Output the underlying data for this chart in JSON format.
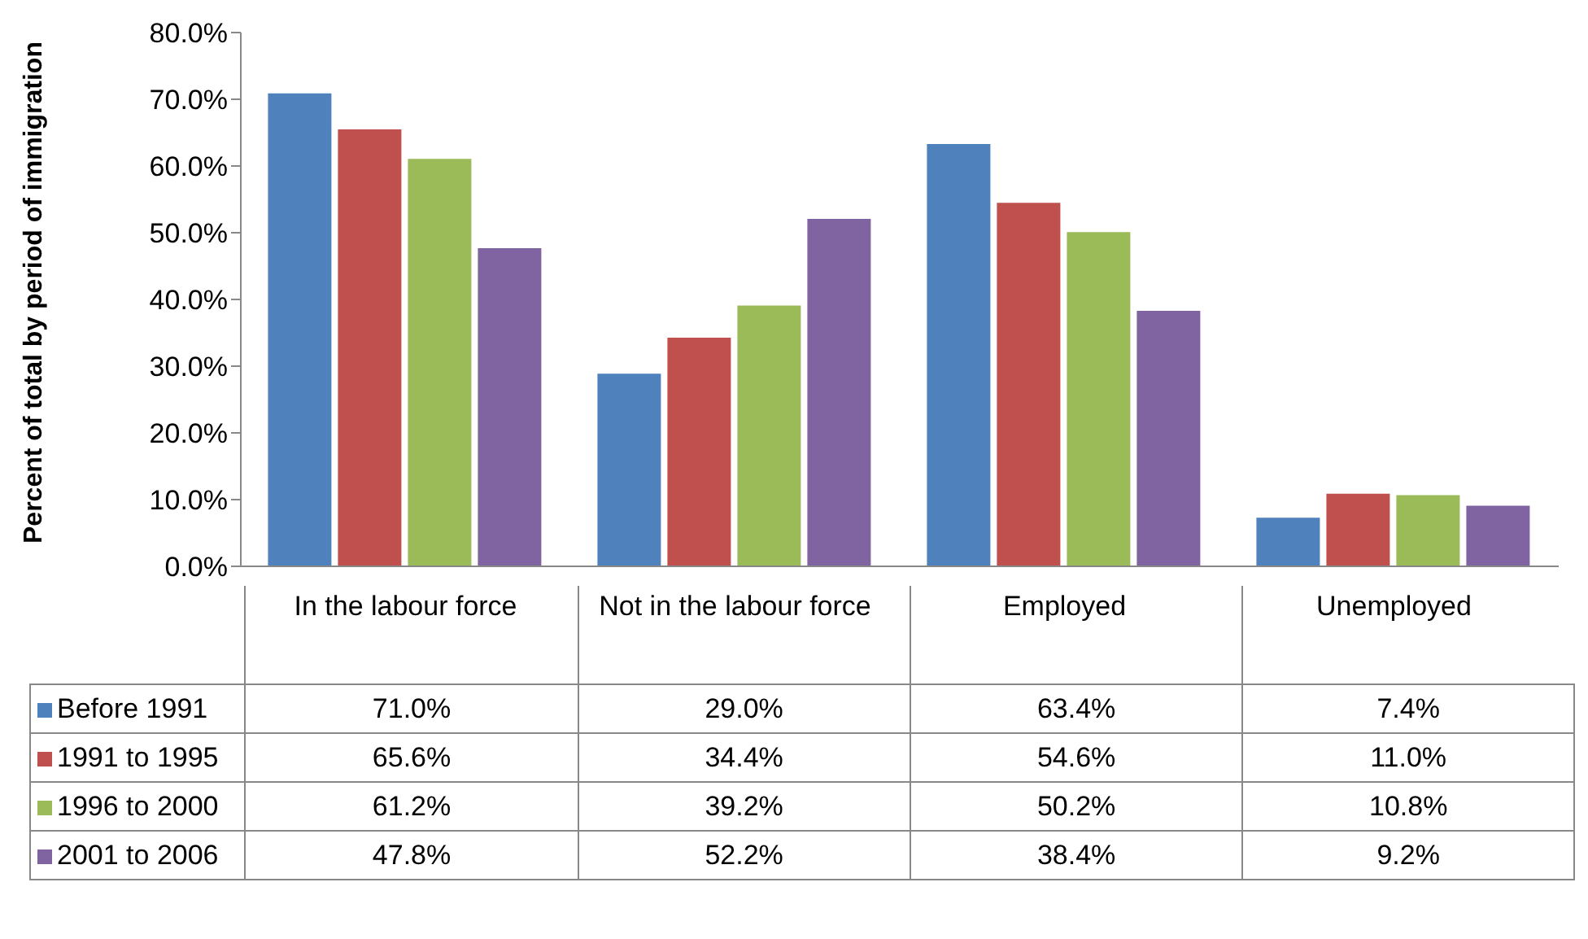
{
  "chart_data": {
    "type": "bar",
    "ylabel": "Percent of total by period of immigration",
    "categories": [
      "In the labour force",
      "Not in the labour force",
      "Employed",
      "Unemployed"
    ],
    "series": [
      {
        "name": "Before 1991",
        "color": "#4f81bd",
        "values": [
          71.0,
          29.0,
          63.4,
          7.4
        ],
        "value_labels": [
          "71.0%",
          "29.0%",
          "63.4%",
          "7.4%"
        ]
      },
      {
        "name": "1991 to 1995",
        "color": "#c0504d",
        "values": [
          65.6,
          34.4,
          54.6,
          11.0
        ],
        "value_labels": [
          "65.6%",
          "34.4%",
          "54.6%",
          "11.0%"
        ]
      },
      {
        "name": "1996 to 2000",
        "color": "#9bbb59",
        "values": [
          61.2,
          39.2,
          50.2,
          10.8
        ],
        "value_labels": [
          "61.2%",
          "39.2%",
          "50.2%",
          "10.8%"
        ]
      },
      {
        "name": "2001 to 2006",
        "color": "#8064a2",
        "values": [
          47.8,
          52.2,
          38.4,
          9.2
        ],
        "value_labels": [
          "47.8%",
          "52.2%",
          "38.4%",
          "9.2%"
        ]
      }
    ],
    "ylim": [
      0,
      80
    ],
    "yticks": [
      {
        "value": 0,
        "label": "0.0%"
      },
      {
        "value": 10,
        "label": "10.0%"
      },
      {
        "value": 20,
        "label": "20.0%"
      },
      {
        "value": 30,
        "label": "30.0%"
      },
      {
        "value": 40,
        "label": "40.0%"
      },
      {
        "value": 50,
        "label": "50.0%"
      },
      {
        "value": 60,
        "label": "60.0%"
      },
      {
        "value": 70,
        "label": "70.0%"
      },
      {
        "value": 80,
        "label": "80.0%"
      }
    ],
    "grid": false,
    "legend": "bottom"
  }
}
